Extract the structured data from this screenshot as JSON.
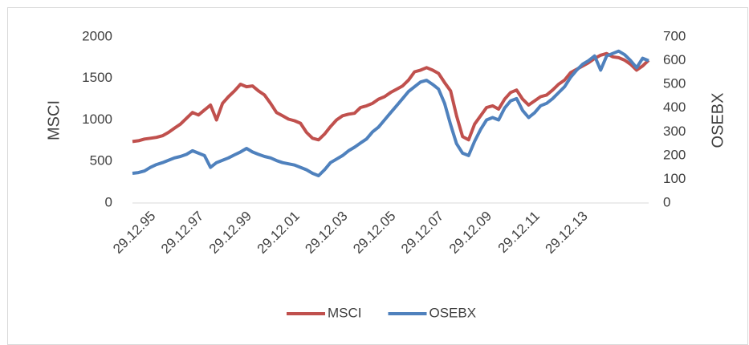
{
  "chart_data": {
    "type": "line",
    "ylabel": "MSCI",
    "y2label": "OSEBX",
    "categories": [
      null,
      null,
      null,
      "29.12.95",
      null,
      null,
      null,
      null,
      null,
      null,
      null,
      "29.12.97",
      null,
      null,
      null,
      null,
      null,
      null,
      null,
      "29.12.99",
      null,
      null,
      null,
      null,
      null,
      null,
      null,
      "29.12.01",
      null,
      null,
      null,
      null,
      null,
      null,
      null,
      "29.12.03",
      null,
      null,
      null,
      null,
      null,
      null,
      null,
      "29.12.05",
      null,
      null,
      null,
      null,
      null,
      null,
      null,
      "29.12.07",
      null,
      null,
      null,
      null,
      null,
      null,
      null,
      "29.12.09",
      null,
      null,
      null,
      null,
      null,
      null,
      null,
      "29.12.11",
      null,
      null,
      null,
      null,
      null,
      null,
      null,
      "29.12.13",
      null,
      null,
      null,
      null,
      null,
      null,
      null,
      null,
      null,
      null,
      null
    ],
    "series": [
      {
        "name": "MSCI",
        "color": "#c0504d",
        "values": [
          740,
          750,
          770,
          780,
          790,
          810,
          850,
          900,
          950,
          1020,
          1090,
          1060,
          1120,
          1180,
          1000,
          1200,
          1280,
          1350,
          1430,
          1400,
          1410,
          1350,
          1300,
          1200,
          1090,
          1050,
          1010,
          990,
          960,
          850,
          780,
          760,
          830,
          920,
          1000,
          1050,
          1070,
          1080,
          1150,
          1170,
          1200,
          1250,
          1280,
          1330,
          1370,
          1410,
          1480,
          1580,
          1600,
          1630,
          1600,
          1560,
          1450,
          1350,
          1050,
          800,
          760,
          950,
          1050,
          1150,
          1170,
          1130,
          1250,
          1330,
          1360,
          1250,
          1180,
          1230,
          1280,
          1300,
          1360,
          1430,
          1480,
          1570,
          1610,
          1650,
          1690,
          1740,
          1780,
          1800,
          1760,
          1750,
          1720,
          1670,
          1600,
          1650,
          1720
        ]
      },
      {
        "name": "OSEBX",
        "color": "#4f81bd",
        "axis": "y2",
        "values": [
          125,
          128,
          135,
          150,
          162,
          170,
          180,
          190,
          196,
          205,
          220,
          210,
          200,
          150,
          170,
          180,
          190,
          203,
          215,
          230,
          215,
          205,
          196,
          190,
          179,
          170,
          165,
          160,
          150,
          140,
          125,
          115,
          140,
          170,
          185,
          200,
          220,
          235,
          253,
          270,
          300,
          320,
          350,
          380,
          410,
          440,
          470,
          490,
          510,
          517,
          500,
          480,
          420,
          330,
          250,
          210,
          200,
          260,
          310,
          350,
          360,
          350,
          400,
          430,
          440,
          390,
          360,
          380,
          410,
          420,
          440,
          465,
          490,
          530,
          560,
          585,
          600,
          620,
          560,
          620,
          630,
          640,
          625,
          600,
          570,
          610,
          600
        ]
      }
    ],
    "ylim": [
      0,
      2000
    ],
    "yticks": [
      0,
      500,
      1000,
      1500,
      2000
    ],
    "y2lim": [
      0,
      700
    ],
    "y2ticks": [
      0,
      100,
      200,
      300,
      400,
      500,
      600,
      700
    ],
    "legend": "bottom"
  }
}
